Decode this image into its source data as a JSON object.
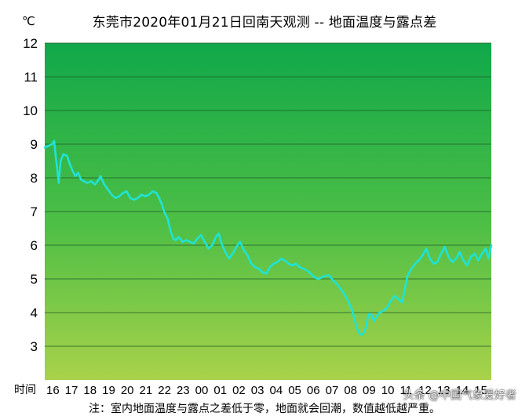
{
  "chart_data": {
    "type": "line",
    "title": "东莞市2020年01月21日回南天观测 -- 地面温度与露点差",
    "ylabel": "℃",
    "xlabel": "时间",
    "ylim": [
      2,
      12
    ],
    "yticks": [
      3,
      4,
      5,
      6,
      7,
      8,
      9,
      10,
      11,
      12
    ],
    "xlim": [
      0,
      24
    ],
    "x_tick_labels": [
      "16",
      "17",
      "18",
      "19",
      "20",
      "21",
      "22",
      "23",
      "00",
      "01",
      "02",
      "03",
      "04",
      "05",
      "06",
      "07",
      "08",
      "09",
      "10",
      "11",
      "12",
      "13",
      "14",
      "15"
    ],
    "grid": true,
    "background_gradient": [
      "#10a84a",
      "#4fbf45",
      "#a9d24a"
    ],
    "line_color": "#1fe3d6",
    "series": [
      {
        "values": [
          [
            0.0,
            8.9
          ],
          [
            0.2,
            8.95
          ],
          [
            0.4,
            9.0
          ],
          [
            0.5,
            9.1
          ],
          [
            0.6,
            8.6
          ],
          [
            0.75,
            7.85
          ],
          [
            0.85,
            8.5
          ],
          [
            1.0,
            8.7
          ],
          [
            1.2,
            8.65
          ],
          [
            1.35,
            8.4
          ],
          [
            1.5,
            8.2
          ],
          [
            1.65,
            8.05
          ],
          [
            1.8,
            8.15
          ],
          [
            1.95,
            7.95
          ],
          [
            2.1,
            7.9
          ],
          [
            2.3,
            7.85
          ],
          [
            2.5,
            7.9
          ],
          [
            2.7,
            7.8
          ],
          [
            2.9,
            7.95
          ],
          [
            3.0,
            8.05
          ],
          [
            3.2,
            7.8
          ],
          [
            3.4,
            7.65
          ],
          [
            3.6,
            7.5
          ],
          [
            3.8,
            7.4
          ],
          [
            4.0,
            7.45
          ],
          [
            4.2,
            7.55
          ],
          [
            4.4,
            7.6
          ],
          [
            4.6,
            7.4
          ],
          [
            4.8,
            7.35
          ],
          [
            5.0,
            7.4
          ],
          [
            5.2,
            7.5
          ],
          [
            5.4,
            7.45
          ],
          [
            5.6,
            7.5
          ],
          [
            5.8,
            7.6
          ],
          [
            6.0,
            7.55
          ],
          [
            6.15,
            7.4
          ],
          [
            6.3,
            7.2
          ],
          [
            6.45,
            6.95
          ],
          [
            6.6,
            6.8
          ],
          [
            6.75,
            6.45
          ],
          [
            6.9,
            6.2
          ],
          [
            7.05,
            6.15
          ],
          [
            7.2,
            6.25
          ],
          [
            7.4,
            6.1
          ],
          [
            7.6,
            6.15
          ],
          [
            7.8,
            6.1
          ],
          [
            8.0,
            6.05
          ],
          [
            8.2,
            6.2
          ],
          [
            8.4,
            6.3
          ],
          [
            8.6,
            6.1
          ],
          [
            8.8,
            5.9
          ],
          [
            9.0,
            6.0
          ],
          [
            9.2,
            6.25
          ],
          [
            9.35,
            6.35
          ],
          [
            9.5,
            6.05
          ],
          [
            9.7,
            5.8
          ],
          [
            9.9,
            5.6
          ],
          [
            10.1,
            5.75
          ],
          [
            10.3,
            5.95
          ],
          [
            10.5,
            6.1
          ],
          [
            10.7,
            5.85
          ],
          [
            10.9,
            5.7
          ],
          [
            11.1,
            5.45
          ],
          [
            11.3,
            5.35
          ],
          [
            11.5,
            5.3
          ],
          [
            11.7,
            5.2
          ],
          [
            11.9,
            5.15
          ],
          [
            12.1,
            5.35
          ],
          [
            12.3,
            5.45
          ],
          [
            12.5,
            5.5
          ],
          [
            12.7,
            5.6
          ],
          [
            12.9,
            5.55
          ],
          [
            13.1,
            5.45
          ],
          [
            13.3,
            5.4
          ],
          [
            13.5,
            5.45
          ],
          [
            13.7,
            5.35
          ],
          [
            13.9,
            5.3
          ],
          [
            14.1,
            5.25
          ],
          [
            14.3,
            5.15
          ],
          [
            14.5,
            5.05
          ],
          [
            14.7,
            5.0
          ],
          [
            14.9,
            5.05
          ],
          [
            15.1,
            5.1
          ],
          [
            15.3,
            5.1
          ],
          [
            15.5,
            4.95
          ],
          [
            15.7,
            4.85
          ],
          [
            15.9,
            4.7
          ],
          [
            16.1,
            4.55
          ],
          [
            16.3,
            4.35
          ],
          [
            16.5,
            4.1
          ],
          [
            16.65,
            3.8
          ],
          [
            16.8,
            3.5
          ],
          [
            16.95,
            3.35
          ],
          [
            17.1,
            3.35
          ],
          [
            17.25,
            3.55
          ],
          [
            17.4,
            3.95
          ],
          [
            17.55,
            3.95
          ],
          [
            17.7,
            3.75
          ],
          [
            17.85,
            3.9
          ],
          [
            18.0,
            4.0
          ],
          [
            18.2,
            4.05
          ],
          [
            18.4,
            4.15
          ],
          [
            18.6,
            4.35
          ],
          [
            18.8,
            4.5
          ],
          [
            19.0,
            4.4
          ],
          [
            19.2,
            4.3
          ],
          [
            19.35,
            4.7
          ],
          [
            19.5,
            5.1
          ],
          [
            19.7,
            5.3
          ],
          [
            19.9,
            5.45
          ],
          [
            20.1,
            5.55
          ],
          [
            20.3,
            5.7
          ],
          [
            20.5,
            5.9
          ],
          [
            20.7,
            5.6
          ],
          [
            20.9,
            5.45
          ],
          [
            21.1,
            5.5
          ],
          [
            21.3,
            5.75
          ],
          [
            21.5,
            5.95
          ],
          [
            21.7,
            5.65
          ],
          [
            21.9,
            5.5
          ],
          [
            22.1,
            5.6
          ],
          [
            22.3,
            5.8
          ],
          [
            22.5,
            5.55
          ],
          [
            22.7,
            5.4
          ],
          [
            22.9,
            5.65
          ],
          [
            23.1,
            5.75
          ],
          [
            23.3,
            5.55
          ],
          [
            23.5,
            5.75
          ],
          [
            23.7,
            5.9
          ],
          [
            23.85,
            5.6
          ],
          [
            24.0,
            6.0
          ]
        ]
      }
    ]
  },
  "watermark": "头条 @中国气象爱好者",
  "footnote": "注：室内地面温度与露点之差低于零，地面就会回潮，数值越低越严重。"
}
